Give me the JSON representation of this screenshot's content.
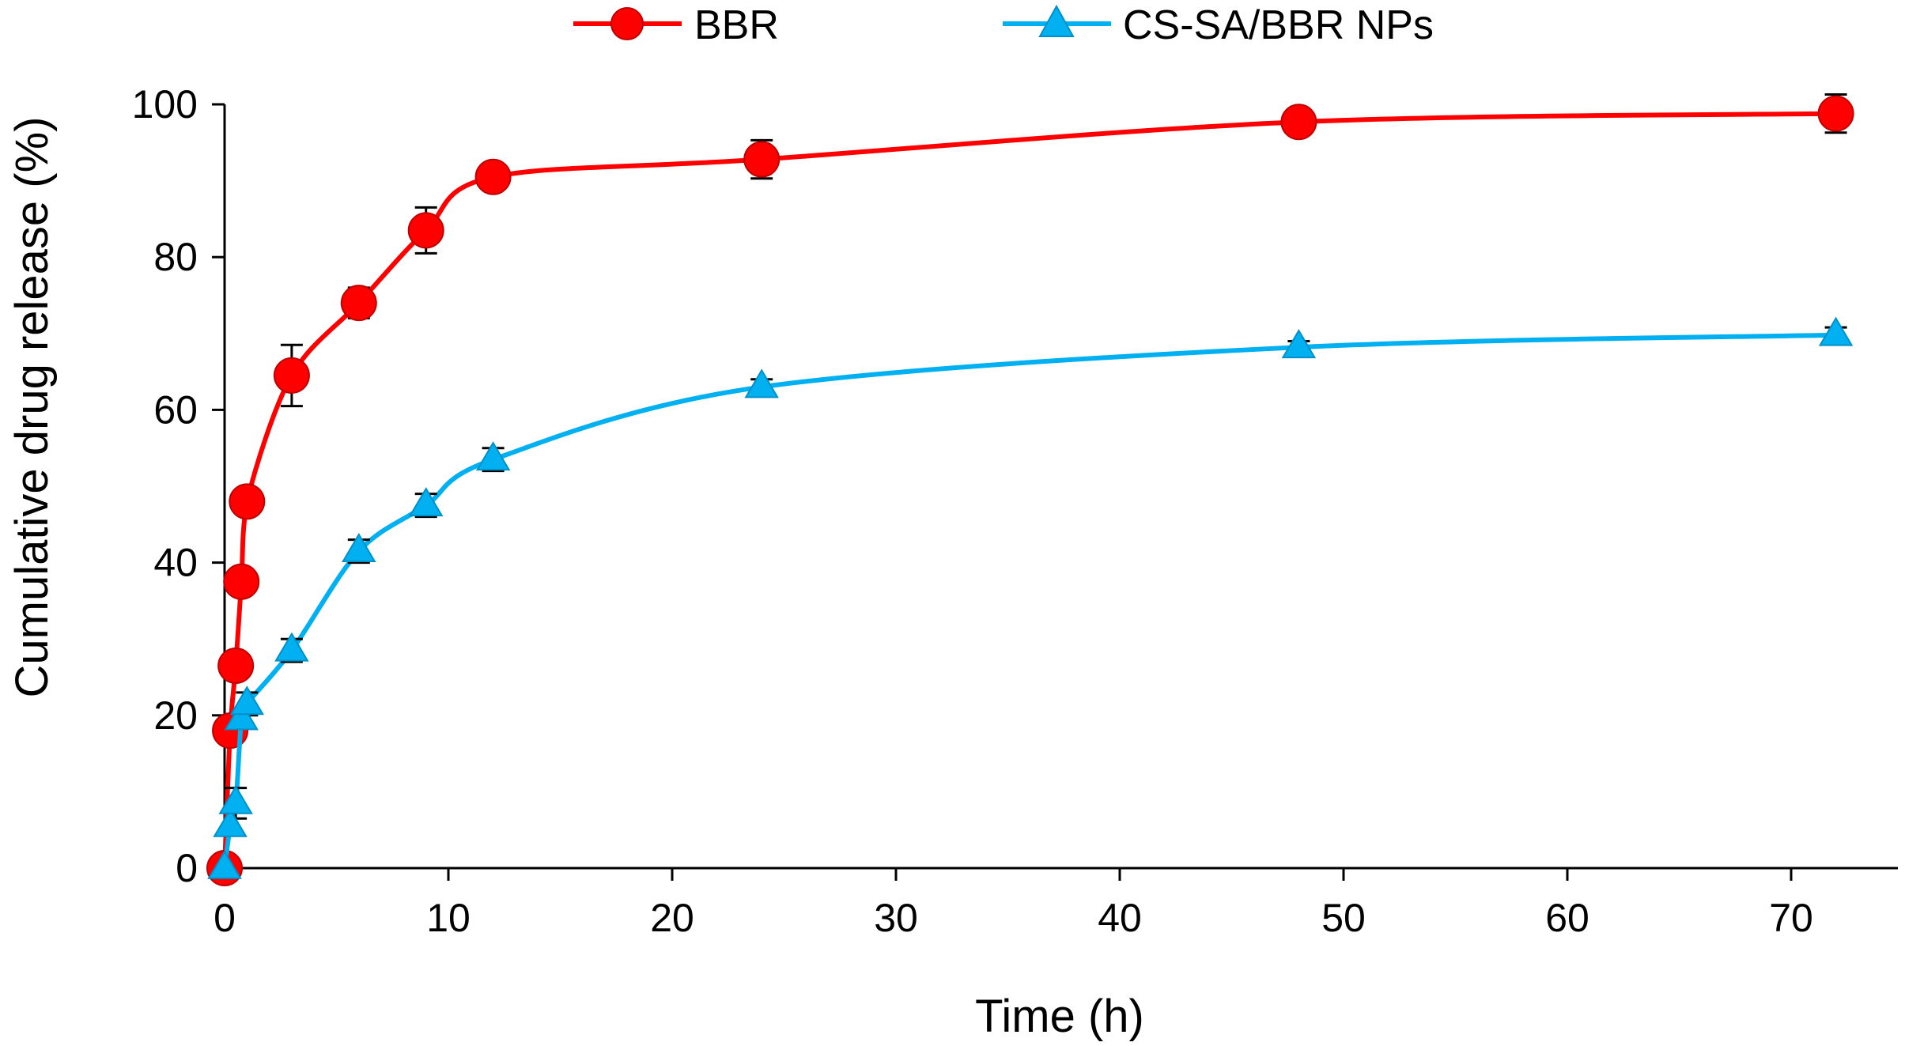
{
  "chart_data": {
    "type": "line",
    "title": "",
    "xlabel": "Time (h)",
    "ylabel": "Cumulative drug release (%)",
    "xlim": [
      0,
      75
    ],
    "ylim": [
      0,
      100
    ],
    "xticks": [
      0,
      10,
      20,
      30,
      40,
      50,
      60,
      70
    ],
    "yticks": [
      0,
      20,
      40,
      60,
      80,
      100
    ],
    "grid": false,
    "legend_position": "top-center",
    "series": [
      {
        "name": "BBR",
        "color": "#ff0000",
        "marker": "circle",
        "x": [
          0,
          0.25,
          0.5,
          0.75,
          1,
          3,
          6,
          9,
          12,
          24,
          48,
          72
        ],
        "y": [
          0,
          18,
          26.5,
          37.5,
          48,
          64.5,
          74,
          83.5,
          90.5,
          92.8,
          97.7,
          98.8
        ],
        "err": [
          0,
          0,
          0,
          0,
          0,
          4,
          2,
          3,
          0,
          2.5,
          0,
          2.5
        ]
      },
      {
        "name": "CS-SA/BBR NPs",
        "color": "#00b0f0",
        "marker": "triangle",
        "x": [
          0,
          0.25,
          0.5,
          0.75,
          1,
          3,
          6,
          9,
          12,
          24,
          48,
          72
        ],
        "y": [
          0,
          5.5,
          8.5,
          19.5,
          21.5,
          28.5,
          41.5,
          47.5,
          53.5,
          63,
          68.2,
          69.8
        ],
        "err": [
          0,
          0,
          2,
          0,
          1.5,
          1.5,
          1.5,
          1.5,
          1.5,
          1,
          0.8,
          1
        ]
      }
    ]
  }
}
